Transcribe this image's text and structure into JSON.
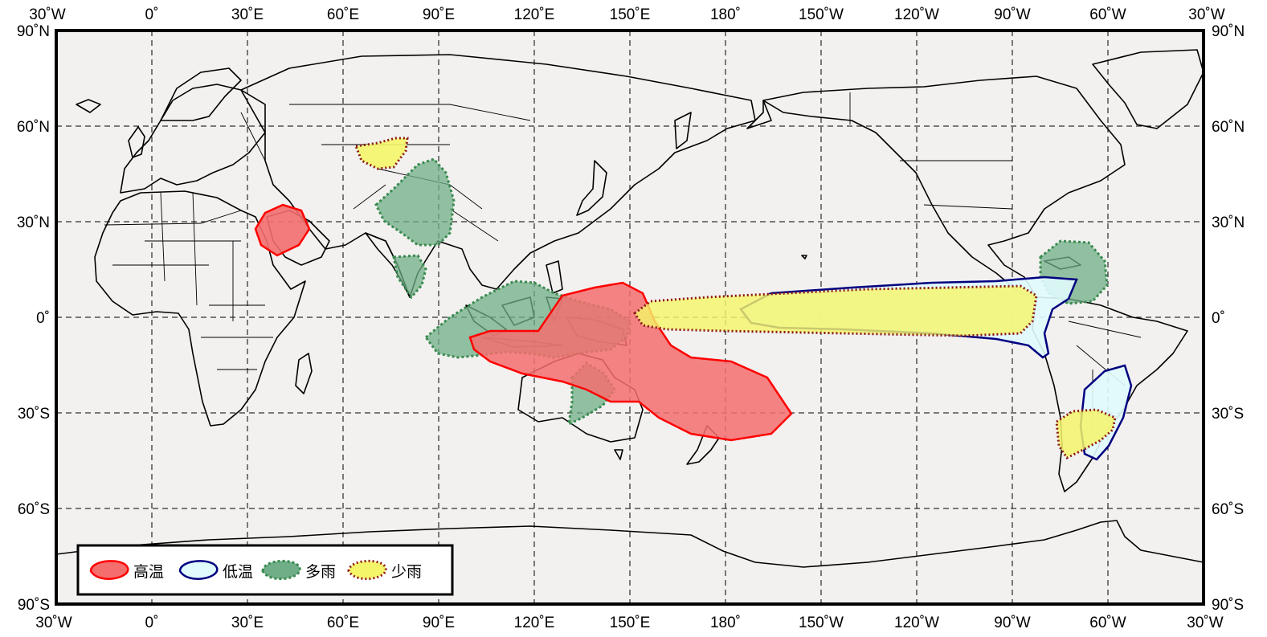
{
  "axes": {
    "top_labels": [
      "30˚W",
      "0˚",
      "30˚E",
      "60˚E",
      "90˚E",
      "120˚E",
      "150˚E",
      "180˚",
      "150˚W",
      "120˚W",
      "90˚W",
      "60˚W",
      "30˚W"
    ],
    "bottom_labels": [
      "30˚W",
      "0˚",
      "30˚E",
      "60˚E",
      "90˚E",
      "120˚E",
      "150˚E",
      "180˚",
      "150˚W",
      "120˚W",
      "90˚W",
      "60˚W",
      "30˚W"
    ],
    "left_labels": [
      "90˚N",
      "60˚N",
      "30˚N",
      "0˚",
      "30˚S",
      "60˚S",
      "90˚S"
    ],
    "right_labels": [
      "90˚N",
      "60˚N",
      "30˚N",
      "0˚",
      "30˚S",
      "60˚S",
      "90˚S"
    ]
  },
  "legend": {
    "items": [
      {
        "key": "high_temp",
        "label": "高温",
        "fill": "#f46e6e",
        "stroke": "#ff0000"
      },
      {
        "key": "low_temp",
        "label": "低温",
        "fill": "#e0fbfd",
        "stroke": "#000080"
      },
      {
        "key": "wet",
        "label": "多雨",
        "fill": "#6fae87",
        "stroke": "#3a8a4f"
      },
      {
        "key": "dry",
        "label": "少雨",
        "fill": "#f5f56a",
        "stroke": "#8b1a1a"
      }
    ]
  },
  "colors": {
    "ocean": "#f2f1f0",
    "frame": "#000000"
  }
}
